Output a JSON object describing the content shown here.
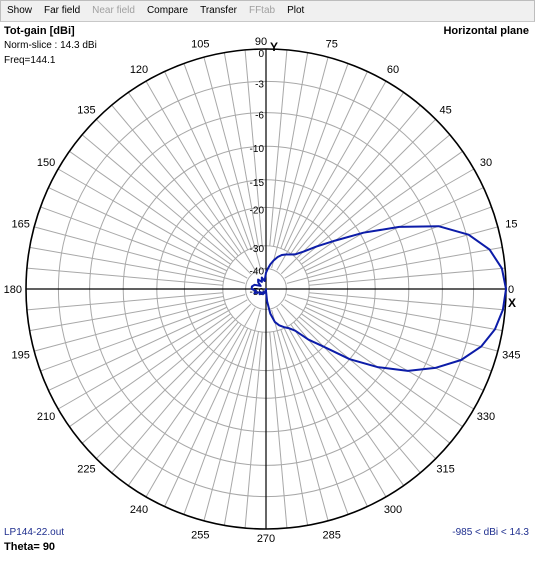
{
  "menu": {
    "items": [
      {
        "label": "Show",
        "enabled": true
      },
      {
        "label": "Far field",
        "enabled": true
      },
      {
        "label": "Near field",
        "enabled": false
      },
      {
        "label": "Compare",
        "enabled": true
      },
      {
        "label": "Transfer",
        "enabled": true
      },
      {
        "label": "FFtab",
        "enabled": false
      },
      {
        "label": "Plot",
        "enabled": true
      }
    ]
  },
  "info": {
    "title": "Tot-gain [dBi]",
    "norm": "Norm-slice : 14.3 dBi",
    "freq": "Freq=144.1",
    "plane": "Horizontal plane",
    "file": "LP144-22.out",
    "range": "-985 < dBi < 14.3",
    "theta": "Theta= 90"
  },
  "colors": {
    "pattern": "#0c1ca8",
    "grid": "#a8a8a8",
    "outer": "#000000",
    "footer_text": "#1f2f8f"
  },
  "chart_data": {
    "type": "polar",
    "radial_labels": [
      "0",
      "-3",
      "-6",
      "-10",
      "-15",
      "-20",
      "-30",
      "-40",
      "-50"
    ],
    "angle_labels": [
      "0",
      "15",
      "30",
      "45",
      "60",
      "75",
      "90",
      "105",
      "120",
      "135",
      "150",
      "165",
      "180",
      "195",
      "210",
      "225",
      "240",
      "255",
      "270",
      "285",
      "300",
      "315",
      "330",
      "345"
    ],
    "axis_labels": {
      "y": "Y",
      "x": "X"
    },
    "series": [
      {
        "angles_deg": [
          0,
          5,
          10,
          15,
          20,
          25,
          30,
          35,
          40,
          45,
          50,
          55,
          60,
          65,
          70,
          75,
          80,
          85,
          90,
          100,
          110,
          120,
          130,
          140,
          150,
          160,
          170,
          180,
          190,
          200,
          210,
          220,
          230,
          240,
          250,
          260,
          270,
          275,
          280,
          285,
          290,
          295,
          300,
          305,
          310,
          315,
          320,
          325,
          330,
          335,
          340,
          345,
          350,
          355
        ],
        "gain_db": [
          0,
          -0.3,
          -1.2,
          -2.8,
          -5.3,
          -9.5,
          -14.5,
          -19.5,
          -24,
          -27.5,
          -29.5,
          -30.5,
          -31.5,
          -32.5,
          -34,
          -36,
          -38,
          -40,
          -42,
          -46,
          -44,
          -46,
          -44,
          -45,
          -47,
          -44,
          -43,
          -43,
          -45,
          -44,
          -47,
          -46,
          -48,
          -47,
          -48,
          -50,
          -49,
          -44,
          -38,
          -34,
          -32,
          -30.5,
          -29.5,
          -28,
          -24,
          -20,
          -15,
          -11,
          -7.5,
          -5,
          -3,
          -1.6,
          -0.7,
          -0.2
        ]
      }
    ]
  }
}
